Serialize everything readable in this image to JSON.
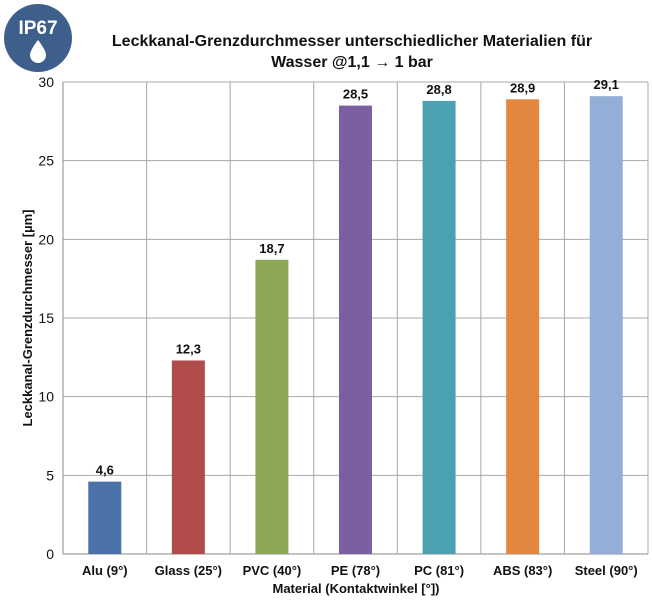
{
  "badge": {
    "text": "IP67",
    "icon": "water-drop-icon",
    "bg_color": "#3e5f8c"
  },
  "chart_data": {
    "type": "bar",
    "title_lines": [
      "Leckkanal-Grenzdurchmesser unterschiedlicher Materialien für",
      "Wasser @1,1 → 1 bar"
    ],
    "xlabel": "Material (Kontaktwinkel [°])",
    "ylabel": "Leckkanal-Grenzdurchmesser [µm]",
    "ylim": [
      0,
      30
    ],
    "yticks": [
      0,
      5,
      10,
      15,
      20,
      25,
      30
    ],
    "grid": true,
    "legend": "none",
    "categories": [
      "Alu (9°)",
      "Glass (25°)",
      "PVC (40°)",
      "PE (78°)",
      "PC (81°)",
      "ABS (83°)",
      "Steel (90°)"
    ],
    "values": [
      4.6,
      12.3,
      18.7,
      28.5,
      28.8,
      28.9,
      29.1
    ],
    "data_labels": [
      "4,6",
      "12,3",
      "18,7",
      "28,5",
      "28,8",
      "28,9",
      "29,1"
    ],
    "colors": [
      "#4a72a8",
      "#b04c4a",
      "#8ca854",
      "#7b5fa0",
      "#4ba0b2",
      "#e3873e",
      "#94afd7"
    ]
  }
}
